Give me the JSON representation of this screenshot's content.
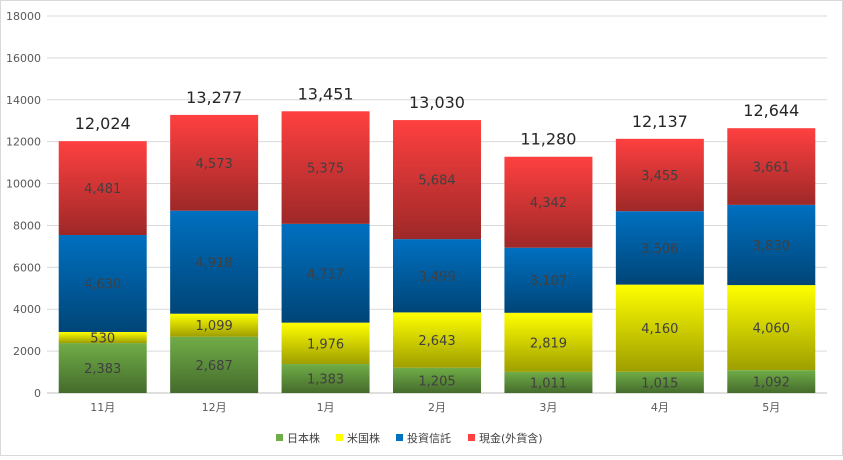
{
  "chart_data": {
    "type": "bar",
    "stacked": true,
    "categories": [
      "11月",
      "12月",
      "1月",
      "2月",
      "3月",
      "4月",
      "5月"
    ],
    "series": [
      {
        "name": "日本株",
        "values": [
          2383,
          2687,
          1383,
          1205,
          1011,
          1015,
          1092
        ],
        "color": "#70ad47"
      },
      {
        "name": "米国株",
        "values": [
          530,
          1099,
          1976,
          2643,
          2819,
          4160,
          4060
        ],
        "color": "#ffff00"
      },
      {
        "name": "投資信託",
        "values": [
          4630,
          4918,
          4717,
          3499,
          3107,
          3506,
          3830
        ],
        "color": "#0070c0"
      },
      {
        "name": "現金(外貨含)",
        "values": [
          4481,
          4573,
          5375,
          5684,
          4342,
          3455,
          3661
        ],
        "color": "#ff4040"
      }
    ],
    "segment_labels": [
      [
        "2,383",
        "2,687",
        "1,383",
        "1,205",
        "1,011",
        "1,015",
        "1,092"
      ],
      [
        "530",
        "1,099",
        "1,976",
        "2,643",
        "2,819",
        "4,160",
        "4,060"
      ],
      [
        "4,630",
        "4,918",
        "4,717",
        "3,499",
        "3,107",
        "3,506",
        "3,830"
      ],
      [
        "4,481",
        "4,573",
        "5,375",
        "5,684",
        "4,342",
        "3,455",
        "3,661"
      ]
    ],
    "totals": [
      12024,
      13277,
      13451,
      13030,
      11280,
      12137,
      12644
    ],
    "total_labels": [
      "12,024",
      "13,277",
      "13,451",
      "13,030",
      "11,280",
      "12,137",
      "12,644"
    ],
    "yticks": [
      "0",
      "2000",
      "4000",
      "6000",
      "8000",
      "10000",
      "12000",
      "14000",
      "16000",
      "18000"
    ],
    "ylim": [
      0,
      18000
    ],
    "grid": true,
    "legend_position": "bottom"
  }
}
